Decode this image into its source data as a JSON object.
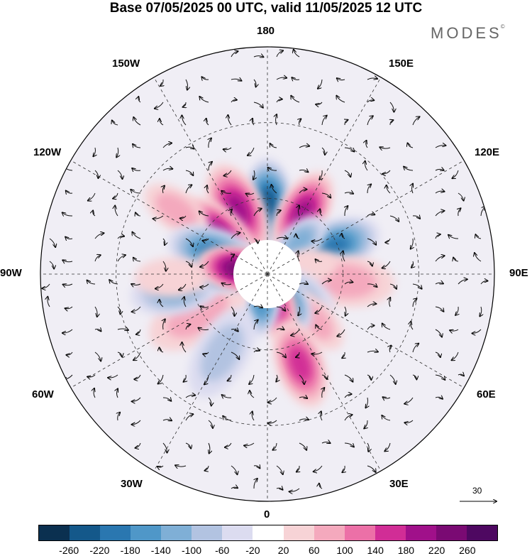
{
  "title": "Base 07/05/2025 00 UTC, valid 11/05/2025 12 UTC",
  "logo": "MODES",
  "logo_mark": "©",
  "longitude_labels": {
    "top": "180",
    "bottom": "0",
    "left": "90W",
    "right": "90E",
    "upper_left_1": "150W",
    "upper_left_2": "120W",
    "upper_right_1": "150E",
    "upper_right_2": "120E",
    "lower_left_1": "60W",
    "lower_left_2": "30W",
    "lower_right_1": "60E",
    "lower_right_2": "30E"
  },
  "reference_vector": {
    "value": "30"
  },
  "colorbar": {
    "ticks": [
      "-260",
      "-220",
      "-180",
      "-140",
      "-100",
      "-60",
      "-20",
      "20",
      "60",
      "100",
      "140",
      "180",
      "220",
      "260"
    ],
    "colors": [
      "#0b3050",
      "#14588a",
      "#2a77b0",
      "#4f97c8",
      "#7fafd6",
      "#b2c3e1",
      "#dcdcf0",
      "#ffffff",
      "#f7d3d6",
      "#f4a9bd",
      "#ec70a7",
      "#d12d96",
      "#a0108a",
      "#7a0a73",
      "#4e0861"
    ]
  },
  "anomaly_cells": [
    {
      "lon": 180,
      "colat": 28,
      "value": -250,
      "size": 1.0
    },
    {
      "lon": 150,
      "colat": 28,
      "value": 200,
      "size": 1.0
    },
    {
      "lon": 205,
      "colat": 28,
      "value": 200,
      "size": 1.1
    },
    {
      "lon": 230,
      "colat": 26,
      "value": 210,
      "size": 1.0
    },
    {
      "lon": 235,
      "colat": 44,
      "value": 100,
      "size": 0.8
    },
    {
      "lon": 112,
      "colat": 28,
      "value": -230,
      "size": 1.1
    },
    {
      "lon": 135,
      "colat": 18,
      "value": -150,
      "size": 0.7
    },
    {
      "lon": 85,
      "colat": 31,
      "value": 90,
      "size": 1.1
    },
    {
      "lon": 100,
      "colat": 15,
      "value": 60,
      "size": 0.7
    },
    {
      "lon": 60,
      "colat": 15,
      "value": -100,
      "size": 0.8
    },
    {
      "lon": 45,
      "colat": 26,
      "value": 100,
      "size": 0.8
    },
    {
      "lon": 35,
      "colat": 12,
      "value": -200,
      "size": 0.8
    },
    {
      "lon": 15,
      "colat": 13,
      "value": 190,
      "size": 0.8
    },
    {
      "lon": 350,
      "colat": 12,
      "value": -160,
      "size": 0.7
    },
    {
      "lon": 20,
      "colat": 38,
      "value": 160,
      "size": 1.0
    },
    {
      "lon": 300,
      "colat": 32,
      "value": 110,
      "size": 1.2
    },
    {
      "lon": 330,
      "colat": 36,
      "value": -100,
      "size": 1.1
    },
    {
      "lon": 280,
      "colat": 37,
      "value": -140,
      "size": 1.0
    },
    {
      "lon": 262,
      "colat": 18,
      "value": -240,
      "size": 1.0
    },
    {
      "lon": 250,
      "colat": 22,
      "value": -220,
      "size": 1.1
    },
    {
      "lon": 272,
      "colat": 38,
      "value": 40,
      "size": 0.8
    },
    {
      "lon": 260,
      "colat": 12,
      "value": 250,
      "size": 0.9
    }
  ]
}
